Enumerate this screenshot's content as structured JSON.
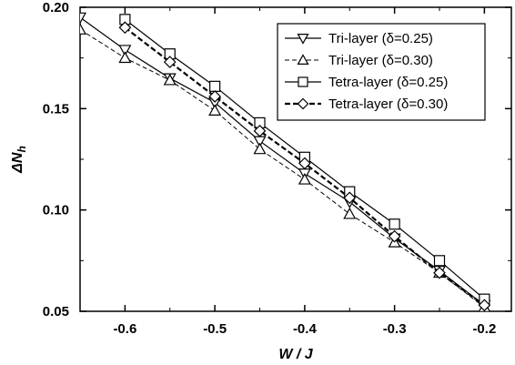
{
  "chart_data": {
    "type": "line",
    "xlabel": "W / J",
    "ylabel": "ΔN",
    "ylabel_sub": "h",
    "xlim": [
      -0.65,
      -0.17
    ],
    "ylim": [
      0.05,
      0.2
    ],
    "xticks": [
      -0.6,
      -0.5,
      -0.4,
      -0.3,
      -0.2
    ],
    "xtick_labels": [
      "-0.6",
      "-0.5",
      "-0.4",
      "-0.3",
      "-0.2"
    ],
    "yticks": [
      0.05,
      0.1,
      0.15,
      0.2
    ],
    "ytick_labels": [
      "0.05",
      "0.10",
      "0.15",
      "0.20"
    ],
    "legend_position": "top-right",
    "series": [
      {
        "name": "Tri-layer (δ=0.25)",
        "marker": "triangle-down",
        "line": "solid",
        "x": [
          -0.65,
          -0.6,
          -0.55,
          -0.5,
          -0.45,
          -0.4,
          -0.35,
          -0.3,
          -0.25,
          -0.2
        ],
        "y": [
          0.195,
          0.179,
          0.165,
          0.153,
          0.134,
          0.118,
          0.104,
          0.086,
          0.07,
          0.053
        ]
      },
      {
        "name": "Tri-layer (δ=0.30)",
        "marker": "triangle-up",
        "line": "dashed",
        "x": [
          -0.65,
          -0.6,
          -0.55,
          -0.5,
          -0.45,
          -0.4,
          -0.35,
          -0.3,
          -0.25,
          -0.2
        ],
        "y": [
          0.189,
          0.175,
          0.164,
          0.149,
          0.13,
          0.115,
          0.098,
          0.084,
          0.069,
          0.052
        ]
      },
      {
        "name": "Tetra-layer (δ=0.25)",
        "marker": "square",
        "line": "solid",
        "x": [
          -0.6,
          -0.55,
          -0.5,
          -0.45,
          -0.4,
          -0.35,
          -0.3,
          -0.25,
          -0.2
        ],
        "y": [
          0.194,
          0.177,
          0.161,
          0.143,
          0.126,
          0.109,
          0.093,
          0.075,
          0.056
        ]
      },
      {
        "name": "Tetra-layer (δ=0.30)",
        "marker": "diamond",
        "line": "dashed-bold",
        "x": [
          -0.6,
          -0.55,
          -0.5,
          -0.45,
          -0.4,
          -0.35,
          -0.3,
          -0.25,
          -0.2
        ],
        "y": [
          0.19,
          0.173,
          0.156,
          0.139,
          0.123,
          0.106,
          0.087,
          0.069,
          0.053
        ]
      }
    ]
  }
}
